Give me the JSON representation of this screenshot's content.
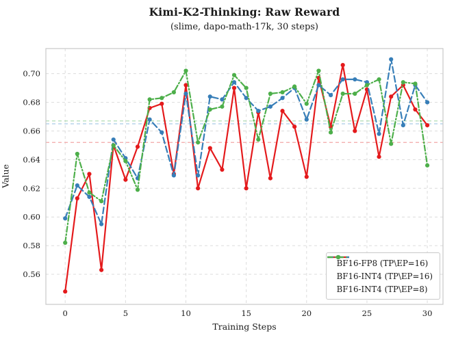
{
  "title": "Kimi-K2-Thinking: Raw Reward",
  "subtitle": "(slime, dapo-math-17k, 30 steps)",
  "chart_data": {
    "type": "line",
    "title": "Kimi-K2-Thinking: Raw Reward",
    "subtitle": "(slime, dapo-math-17k, 30 steps)",
    "xlabel": "Training Steps",
    "ylabel": "Value",
    "x": [
      0,
      1,
      2,
      3,
      4,
      5,
      6,
      7,
      8,
      9,
      10,
      11,
      12,
      13,
      14,
      15,
      16,
      17,
      18,
      19,
      20,
      21,
      22,
      23,
      24,
      25,
      26,
      27,
      28,
      29,
      30
    ],
    "xticks": [
      0,
      5,
      10,
      15,
      20,
      25,
      30
    ],
    "yticks": [
      0.56,
      0.58,
      0.6,
      0.62,
      0.64,
      0.66,
      0.68,
      0.7
    ],
    "xlim": [
      -1.6,
      31.3
    ],
    "ylim": [
      0.539,
      0.7175
    ],
    "grid": "dashed-both-axes",
    "legend_position": "lower right",
    "series": [
      {
        "name": "BF16-FP8 (TP\\EP=16)",
        "color": "#e41a1c",
        "line_style": "solid",
        "marker": "circle",
        "values": [
          0.548,
          0.613,
          0.63,
          0.563,
          0.65,
          0.626,
          0.649,
          0.676,
          0.679,
          0.63,
          0.692,
          0.62,
          0.648,
          0.633,
          0.69,
          0.62,
          0.673,
          0.627,
          0.674,
          0.663,
          0.628,
          0.697,
          0.663,
          0.706,
          0.66,
          0.689,
          0.642,
          0.684,
          0.692,
          0.675,
          0.664
        ]
      },
      {
        "name": "BF16-INT4 (TP\\EP=16)",
        "color": "#377eb8",
        "line_style": "dashed",
        "marker": "circle",
        "values": [
          0.599,
          0.622,
          0.614,
          0.595,
          0.654,
          0.641,
          0.627,
          0.668,
          0.659,
          0.629,
          0.686,
          0.629,
          0.684,
          0.682,
          0.694,
          0.683,
          0.674,
          0.677,
          0.683,
          0.69,
          0.668,
          0.692,
          0.685,
          0.696,
          0.696,
          0.694,
          0.658,
          0.71,
          0.664,
          0.692,
          0.68
        ]
      },
      {
        "name": "BF16-INT4 (TP\\EP=8)",
        "color": "#4daf4a",
        "line_style": "dashdot",
        "marker": "circle",
        "values": [
          0.582,
          0.644,
          0.617,
          0.611,
          0.65,
          0.639,
          0.619,
          0.682,
          0.683,
          0.687,
          0.702,
          0.652,
          0.675,
          0.677,
          0.699,
          0.69,
          0.654,
          0.686,
          0.687,
          0.691,
          0.679,
          0.702,
          0.659,
          0.686,
          0.686,
          0.692,
          0.696,
          0.651,
          0.694,
          0.693,
          0.636
        ]
      }
    ],
    "mean_lines": [
      {
        "series": "BF16-FP8 (TP\\EP=16)",
        "value": 0.652,
        "color": "#f3a6a6",
        "style": "dashed"
      },
      {
        "series": "BF16-INT4 (TP\\EP=16)",
        "value": 0.665,
        "color": "#a9cbe8",
        "style": "dashed"
      },
      {
        "series": "BF16-INT4 (TP\\EP=8)",
        "value": 0.667,
        "color": "#a9d9ab",
        "style": "dashed"
      }
    ]
  }
}
